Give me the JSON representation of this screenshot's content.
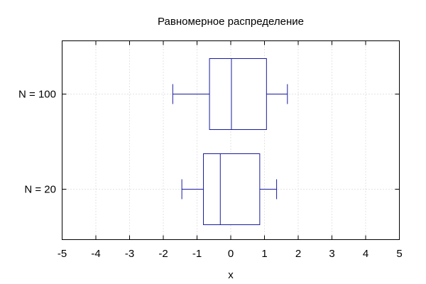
{
  "chart_data": {
    "type": "boxplot",
    "orientation": "horizontal",
    "title": "Равномерное распределение",
    "xlabel": "x",
    "ylabel": "",
    "xlim": [
      -5,
      5
    ],
    "x_ticks": [
      -5,
      -4,
      -3,
      -2,
      -1,
      0,
      1,
      2,
      3,
      4,
      5
    ],
    "grid": true,
    "box_color": "#1a1aa0",
    "series": [
      {
        "name": "N = 100",
        "whisker_low": -1.72,
        "q1": -0.63,
        "median": 0.02,
        "q3": 1.06,
        "whisker_high": 1.68
      },
      {
        "name": "N = 20",
        "whisker_low": -1.45,
        "q1": -0.81,
        "median": -0.31,
        "q3": 0.86,
        "whisker_high": 1.36
      }
    ]
  }
}
